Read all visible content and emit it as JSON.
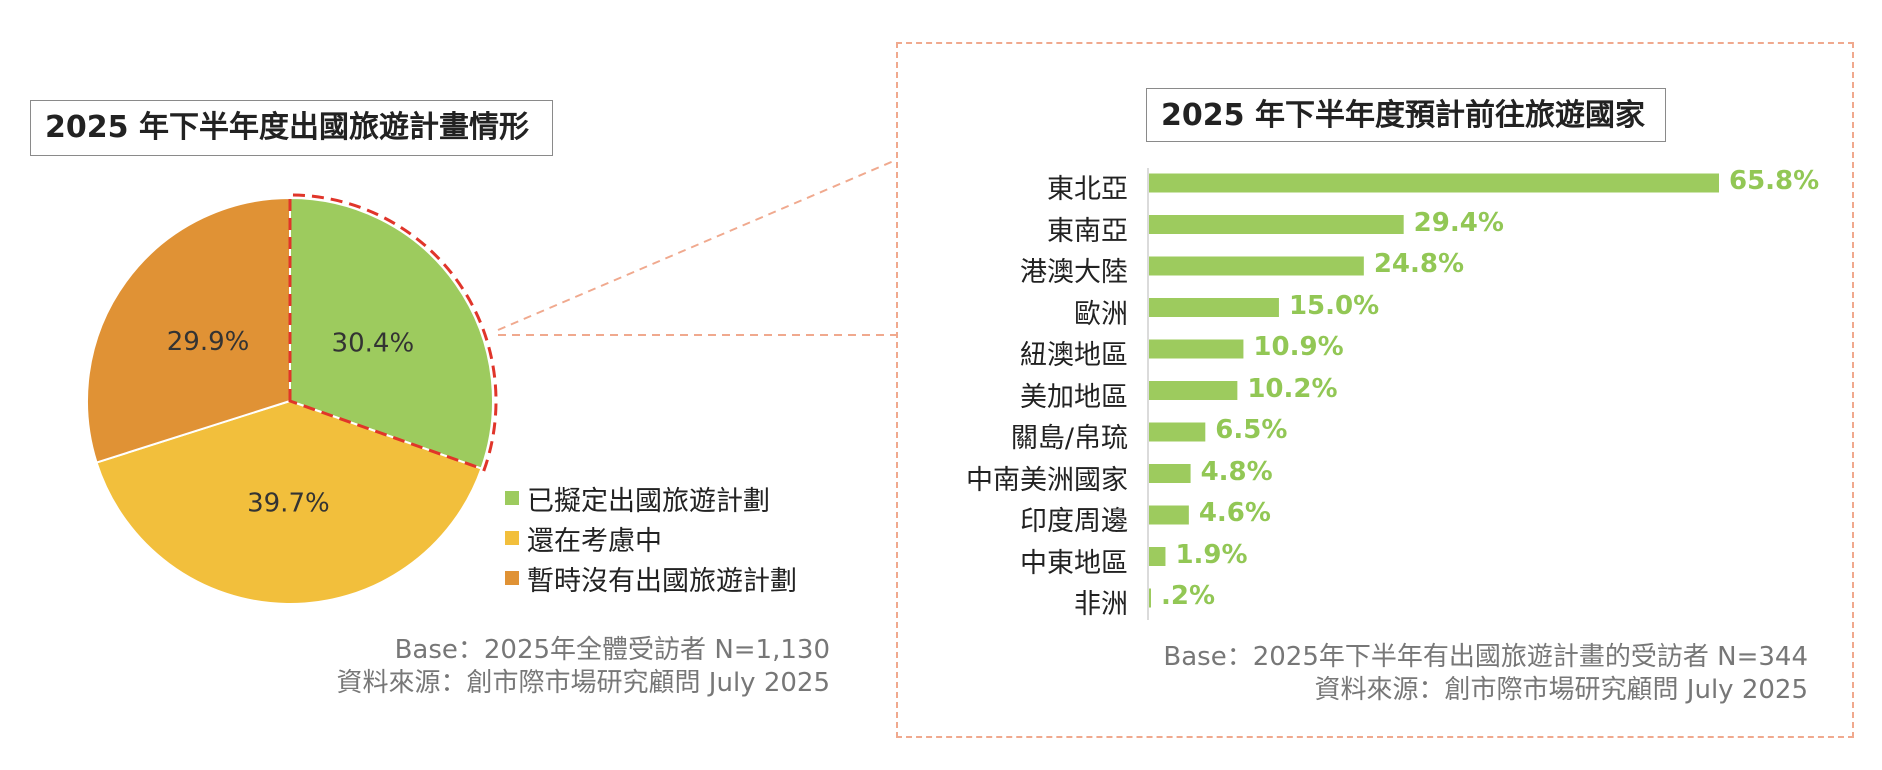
{
  "pie_title": "2025 年下半年度出國旅遊計畫情形",
  "bar_title": "2025 年下半年度預計前往旅遊國家",
  "chart_data": [
    {
      "type": "pie",
      "title": "2025 年下半年度出國旅遊計畫情形",
      "slices": [
        {
          "name": "已擬定出國旅遊計劃",
          "value": 30.4,
          "label": "30.4%",
          "color": "#9dcb5e"
        },
        {
          "name": "還在考慮中",
          "value": 39.7,
          "label": "39.7%",
          "color": "#f2bf3c"
        },
        {
          "name": "暫時沒有出國旅遊計劃",
          "value": 29.9,
          "label": "29.9%",
          "color": "#e09235"
        }
      ],
      "highlighted_slice": "已擬定出國旅遊計劃",
      "legend_position": "bottom-right"
    },
    {
      "type": "bar",
      "orientation": "horizontal",
      "title": "2025 年下半年度預計前往旅遊國家",
      "categories": [
        "東北亞",
        "東南亞",
        "港澳大陸",
        "歐洲",
        "紐澳地區",
        "美加地區",
        "關島/帛琉",
        "中南美洲國家",
        "印度周邊",
        "中東地區",
        "非洲"
      ],
      "values": [
        65.8,
        29.4,
        24.8,
        15.0,
        10.9,
        10.2,
        6.5,
        4.8,
        4.6,
        1.9,
        0.2
      ],
      "value_labels": [
        "65.8%",
        "29.4%",
        "24.8%",
        "15.0%",
        "10.9%",
        "10.2%",
        "6.5%",
        "4.8%",
        "4.6%",
        "1.9%",
        ".2%"
      ],
      "color": "#9dcb5e",
      "xlim": [
        0,
        70
      ]
    }
  ],
  "notes": {
    "left_base": "Base：2025年全體受訪者 N=1,130",
    "left_source": "資料來源：創市際市場研究顧問 July 2025",
    "right_base": "Base：2025年下半年有出國旅遊計畫的受訪者 N=344",
    "right_source": "資料來源：創市際市場研究顧問 July 2025"
  }
}
